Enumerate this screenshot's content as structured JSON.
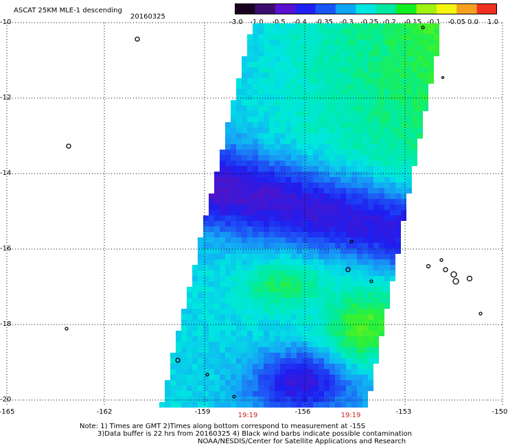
{
  "header": {
    "title": "ASCAT 25KM MLE-1 descending",
    "date": "20160325"
  },
  "colorbar": {
    "labels": [
      "-3.0",
      "-1.0",
      "-0.5",
      "-0.4",
      "-0.35",
      "-0.3",
      "-0.25",
      "-0.2",
      "-0.15",
      "-0.1",
      "-0.05",
      "0.0",
      "1.0"
    ],
    "colors": [
      "#1a0020",
      "#3a0d6e",
      "#5a10d0",
      "#2020f5",
      "#1a55f5",
      "#0aa5f5",
      "#00e6e0",
      "#00e8a0",
      "#10f020",
      "#a0f010",
      "#f5f510",
      "#f5a020",
      "#f03020"
    ]
  },
  "map": {
    "lat_labels": [
      "-10",
      "-12",
      "-14",
      "-16",
      "-18",
      "-20"
    ],
    "lon_labels": [
      "-165",
      "-162",
      "-159",
      "-156",
      "-153",
      "-150"
    ],
    "time_labels": [
      "19:19",
      "19:19"
    ]
  },
  "notes": {
    "line1": "Note: 1) Times are GMT 2)Times along bottom correspond to measurement at -15S",
    "line2": "3)Data buffer is 22 hrs from 20160325 4) Black wind barbs indicate possible contamination",
    "line3": "NOAA/NESDIS/Center for Satellite Applications and Research"
  }
}
